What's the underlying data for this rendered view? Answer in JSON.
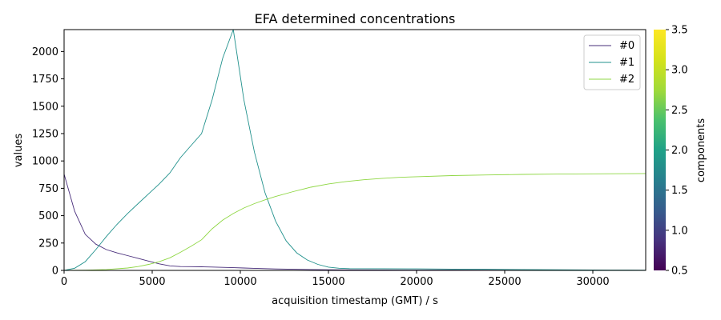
{
  "chart_data": {
    "type": "line",
    "title": "EFA determined concentrations",
    "xlabel": "acquisition timestamp (GMT) / s",
    "ylabel": "values",
    "xlim": [
      0,
      33000
    ],
    "ylim": [
      0,
      2200
    ],
    "xticks": [
      0,
      5000,
      10000,
      15000,
      20000,
      25000,
      30000
    ],
    "yticks": [
      0,
      250,
      500,
      750,
      1000,
      1250,
      1500,
      1750,
      2000
    ],
    "grid": false,
    "legend_position": "top-right",
    "series": [
      {
        "name": "#0",
        "color": "#472c7a",
        "x": [
          0,
          600,
          1200,
          1800,
          2400,
          3000,
          3600,
          4200,
          4800,
          5400,
          6000,
          6600,
          7200,
          7800,
          8400,
          9000,
          9600,
          10200,
          10800,
          11400,
          12000,
          13000,
          14000,
          15000,
          16000,
          18000,
          20000,
          22000,
          24000,
          26000,
          28000,
          30000,
          32000,
          33000
        ],
        "y": [
          880,
          540,
          330,
          240,
          190,
          160,
          135,
          110,
          85,
          60,
          42,
          35,
          34,
          33,
          31,
          28,
          25,
          22,
          19,
          16,
          13,
          10,
          8,
          6,
          5,
          4,
          3,
          3,
          2,
          2,
          2,
          1,
          1,
          1
        ]
      },
      {
        "name": "#1",
        "color": "#21918c",
        "x": [
          0,
          600,
          1200,
          1800,
          2400,
          3000,
          3600,
          4200,
          4800,
          5400,
          6000,
          6600,
          7200,
          7800,
          8400,
          9000,
          9600,
          10200,
          10800,
          11400,
          12000,
          12600,
          13200,
          13800,
          14400,
          15000,
          15600,
          16200,
          18000,
          20000,
          22000,
          24000,
          26000,
          28000,
          30000,
          32000,
          33000
        ],
        "y": [
          0,
          20,
          80,
          190,
          310,
          420,
          520,
          610,
          700,
          790,
          890,
          1030,
          1140,
          1250,
          1560,
          1940,
          2200,
          1560,
          1080,
          710,
          450,
          270,
          160,
          95,
          55,
          30,
          20,
          16,
          15,
          14,
          12,
          10,
          8,
          6,
          4,
          3,
          2
        ]
      },
      {
        "name": "#2",
        "color": "#8fd744",
        "x": [
          0,
          1200,
          2400,
          3600,
          4200,
          4800,
          5400,
          6000,
          6600,
          7200,
          7800,
          8400,
          9000,
          9600,
          10200,
          10800,
          11400,
          12000,
          13000,
          14000,
          15000,
          16000,
          17000,
          18000,
          19000,
          20000,
          22000,
          24000,
          26000,
          28000,
          30000,
          32000,
          33000
        ],
        "y": [
          0,
          2,
          8,
          22,
          35,
          55,
          80,
          115,
          165,
          220,
          280,
          380,
          460,
          520,
          570,
          610,
          645,
          675,
          720,
          760,
          790,
          812,
          828,
          840,
          850,
          856,
          866,
          872,
          877,
          880,
          882,
          884,
          885
        ]
      }
    ],
    "colorbar": {
      "label": "components",
      "range": [
        0.5,
        3.5
      ],
      "ticks": [
        "0.5",
        "1.0",
        "1.5",
        "2.0",
        "2.5",
        "3.0",
        "3.5"
      ]
    }
  }
}
